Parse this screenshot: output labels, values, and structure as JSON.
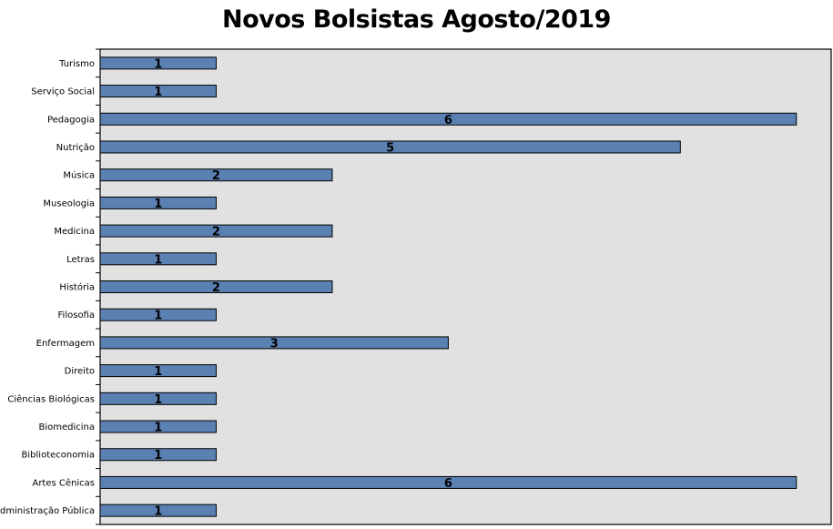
{
  "chart_data": {
    "type": "bar",
    "orientation": "horizontal",
    "title": "Novos Bolsistas Agosto/2019",
    "xlabel": "",
    "ylabel": "",
    "categories": [
      "Turismo",
      "Serviço Social",
      "Pedagogia",
      "Nutrição",
      "Música",
      "Museologia",
      "Medicina",
      "Letras",
      "História",
      "Filosofia",
      "Enfermagem",
      "Direito",
      "Ciências Biológicas",
      "Biomedicina",
      "Biblioteconomia",
      "Artes Cênicas",
      "Administração Pública"
    ],
    "values": [
      1,
      1,
      6,
      5,
      2,
      1,
      2,
      1,
      2,
      1,
      3,
      1,
      1,
      1,
      1,
      6,
      1
    ],
    "xlim": [
      0,
      6.3
    ],
    "grid": false,
    "legend": "none",
    "data_labels": true,
    "colors": {
      "bar": "#5b80b2",
      "plot_background": "#e1e1e1",
      "border": "#000000"
    }
  }
}
